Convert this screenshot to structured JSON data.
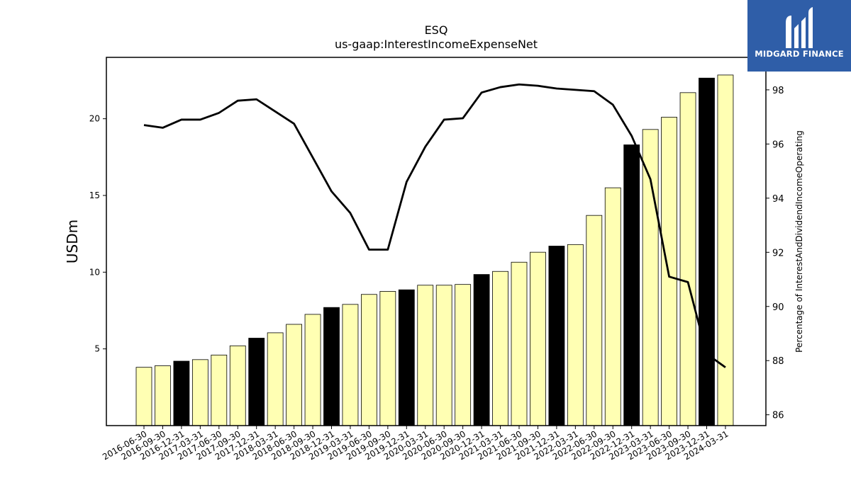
{
  "chart_data": {
    "type": "bar",
    "title": "ESQ",
    "subtitle": "us-gaap:InterestIncomeExpenseNet",
    "ylabel": "USDm",
    "y2label": "Percentage of InterestAndDividendIncomeOperating",
    "ylim": [
      0,
      24
    ],
    "y2lim": [
      85.6,
      99.2
    ],
    "yticks": [
      5,
      10,
      15,
      20
    ],
    "y2ticks": [
      86,
      88,
      90,
      92,
      94,
      96,
      98
    ],
    "categories": [
      "2016-06-30",
      "2016-09-30",
      "2016-12-31",
      "2017-03-31",
      "2017-06-30",
      "2017-09-30",
      "2017-12-31",
      "2018-03-31",
      "2018-06-30",
      "2018-09-30",
      "2018-12-31",
      "2019-03-31",
      "2019-06-30",
      "2019-09-30",
      "2019-12-31",
      "2020-03-31",
      "2020-06-30",
      "2020-09-30",
      "2020-12-31",
      "2021-03-31",
      "2021-06-30",
      "2021-09-30",
      "2021-12-31",
      "2022-03-31",
      "2022-06-30",
      "2022-09-30",
      "2022-12-31",
      "2023-03-31",
      "2023-06-30",
      "2023-09-30",
      "2023-12-31",
      "2024-03-31"
    ],
    "series": [
      {
        "kind": "bar",
        "values": [
          3.8,
          3.9,
          4.2,
          4.3,
          4.6,
          5.2,
          5.7,
          6.05,
          6.6,
          7.25,
          7.7,
          7.9,
          8.55,
          8.75,
          8.85,
          9.15,
          9.15,
          9.2,
          9.85,
          10.05,
          10.65,
          11.3,
          11.7,
          11.8,
          13.7,
          15.5,
          18.3,
          19.3,
          20.1,
          21.7,
          22.65,
          22.85
        ],
        "colors": [
          "#ffffb3",
          "#ffffb3",
          "#000000",
          "#ffffb3",
          "#ffffb3",
          "#ffffb3",
          "#000000",
          "#ffffb3",
          "#ffffb3",
          "#ffffb3",
          "#000000",
          "#ffffb3",
          "#ffffb3",
          "#ffffb3",
          "#000000",
          "#ffffb3",
          "#ffffb3",
          "#ffffb3",
          "#000000",
          "#ffffb3",
          "#ffffb3",
          "#ffffb3",
          "#000000",
          "#ffffb3",
          "#ffffb3",
          "#ffffb3",
          "#000000",
          "#ffffb3",
          "#ffffb3",
          "#ffffb3",
          "#000000",
          "#ffffb3"
        ]
      },
      {
        "kind": "line",
        "axis": "right",
        "color": "#000000",
        "values": [
          96.7,
          96.6,
          96.9,
          96.9,
          97.15,
          97.6,
          97.65,
          97.2,
          96.75,
          95.5,
          94.25,
          93.45,
          92.1,
          92.1,
          94.6,
          95.9,
          96.9,
          96.95,
          97.9,
          98.1,
          98.2,
          98.15,
          98.05,
          98.0,
          97.95,
          97.45,
          96.3,
          94.7,
          91.1,
          90.9,
          88.25,
          87.75
        ]
      }
    ],
    "grid": false,
    "legend": "none"
  },
  "logo": {
    "brand": "MIDGARD FINANCE",
    "background": "#2f5ea8"
  }
}
